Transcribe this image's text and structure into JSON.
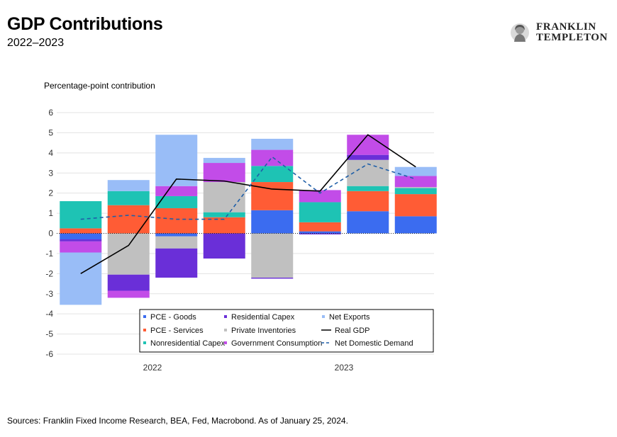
{
  "header": {
    "title": "GDP Contributions",
    "subtitle": "2022–2023"
  },
  "logo": {
    "line1": "FRANKLIN",
    "line2": "TEMPLETON"
  },
  "footer": {
    "source": "Sources: Franklin Fixed Income Research, BEA, Fed, Macrobond. As of January 25, 2024."
  },
  "colors": {
    "pce_goods": "#3b6cf0",
    "residential_capex": "#6a2fd8",
    "net_exports": "#99bdf7",
    "pce_services": "#ff5c35",
    "private_inventories": "#c0c0c0",
    "nonresidential_capex": "#1ec3b4",
    "government_consumption": "#c24ce8",
    "real_gdp": "#000000",
    "net_domestic_demand": "#1f5fa8"
  },
  "chart_data": {
    "type": "bar",
    "stacked": true,
    "ylabel": "Percentage-point contribution",
    "ylim": [
      -6,
      6
    ],
    "yticks": [
      "6",
      "5",
      "4",
      "3",
      "2",
      "1",
      "0",
      "-1",
      "-2",
      "-3",
      "-4",
      "-5",
      "-6"
    ],
    "ytick_values": [
      6,
      5,
      4,
      3,
      2,
      1,
      0,
      -1,
      -2,
      -3,
      -4,
      -5,
      -6
    ],
    "x_group_labels": [
      "2022",
      "2023"
    ],
    "quarters": 8,
    "grid": true,
    "legend_position": "bottom-right-inside",
    "series": [
      {
        "key": "pce_goods",
        "name": "PCE - Goods",
        "kind": "bar",
        "values": [
          -0.3,
          0.0,
          -0.15,
          0.0,
          1.15,
          0.1,
          1.1,
          0.85
        ]
      },
      {
        "key": "pce_services",
        "name": "PCE - Services",
        "kind": "bar",
        "values": [
          0.25,
          1.4,
          1.25,
          0.8,
          1.4,
          0.45,
          1.0,
          1.1
        ]
      },
      {
        "key": "nonresidential_capex",
        "name": "Nonresidential Capex",
        "kind": "bar",
        "values": [
          1.35,
          0.7,
          0.6,
          0.25,
          0.8,
          1.0,
          0.25,
          0.3
        ]
      },
      {
        "key": "private_inventories",
        "name": "Private Inventories",
        "kind": "bar",
        "values": [
          0.0,
          -2.05,
          -0.6,
          1.5,
          -2.2,
          0.0,
          1.3,
          0.05
        ]
      },
      {
        "key": "residential_capex",
        "name": "Residential Capex",
        "kind": "bar",
        "values": [
          -0.1,
          -0.8,
          -1.45,
          -1.25,
          -0.05,
          -0.05,
          0.25,
          0.0
        ]
      },
      {
        "key": "government_consumption",
        "name": "Government Consumption",
        "kind": "bar",
        "values": [
          -0.55,
          -0.35,
          0.5,
          0.95,
          0.8,
          0.6,
          1.0,
          0.55
        ]
      },
      {
        "key": "net_exports",
        "name": "Net Exports",
        "kind": "bar",
        "values": [
          -2.6,
          0.55,
          2.55,
          0.25,
          0.55,
          0.0,
          0.0,
          0.45
        ]
      },
      {
        "key": "real_gdp",
        "name": "Real GDP",
        "kind": "line",
        "values": [
          -2.0,
          -0.6,
          2.7,
          2.6,
          2.2,
          2.1,
          4.9,
          3.3
        ]
      },
      {
        "key": "net_domestic_demand",
        "name": "Net Domestic Demand",
        "kind": "dashed-line",
        "values": [
          0.7,
          0.9,
          0.7,
          0.7,
          3.8,
          2.0,
          3.45,
          2.7
        ]
      }
    ],
    "legend": [
      [
        "pce_goods",
        "residential_capex",
        "net_exports"
      ],
      [
        "pce_services",
        "private_inventories",
        "real_gdp"
      ],
      [
        "nonresidential_capex",
        "government_consumption",
        "net_domestic_demand"
      ]
    ]
  }
}
